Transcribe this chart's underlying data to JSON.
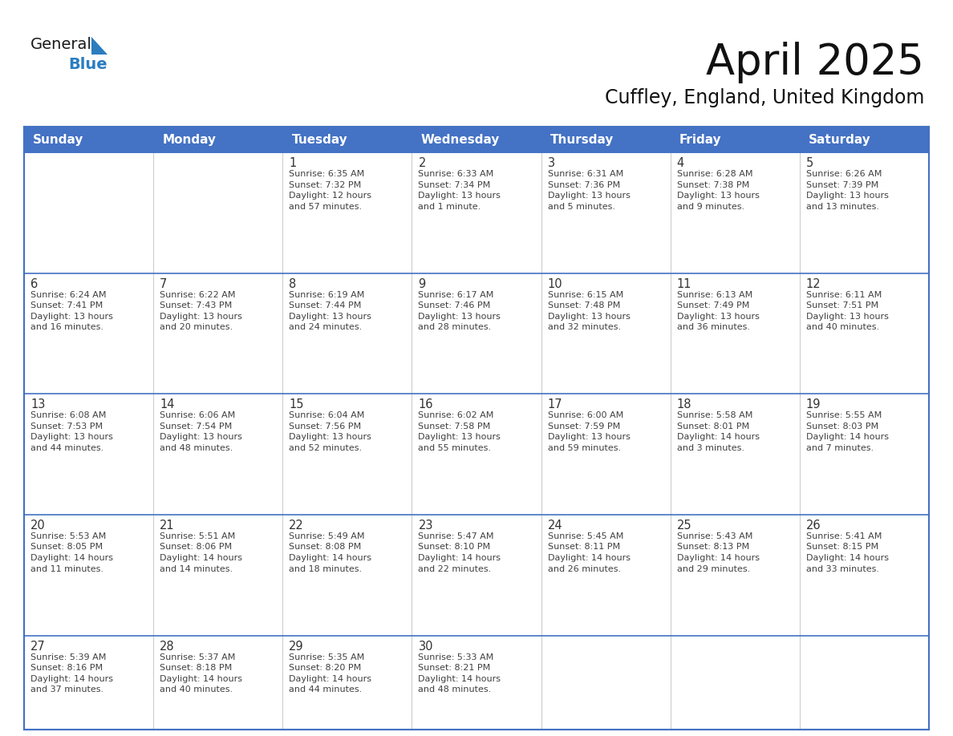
{
  "title": "April 2025",
  "subtitle": "Cuffley, England, United Kingdom",
  "header_bg_color": "#4472C4",
  "header_text_color": "#FFFFFF",
  "cell_bg_color": "#FFFFFF",
  "row_divider_color": "#4472C4",
  "col_divider_color": "#CCCCCC",
  "border_color": "#4472C4",
  "text_color": "#404040",
  "day_num_color": "#333333",
  "day_headers": [
    "Sunday",
    "Monday",
    "Tuesday",
    "Wednesday",
    "Thursday",
    "Friday",
    "Saturday"
  ],
  "weeks": [
    [
      {
        "day": "",
        "info": ""
      },
      {
        "day": "",
        "info": ""
      },
      {
        "day": "1",
        "info": "Sunrise: 6:35 AM\nSunset: 7:32 PM\nDaylight: 12 hours\nand 57 minutes."
      },
      {
        "day": "2",
        "info": "Sunrise: 6:33 AM\nSunset: 7:34 PM\nDaylight: 13 hours\nand 1 minute."
      },
      {
        "day": "3",
        "info": "Sunrise: 6:31 AM\nSunset: 7:36 PM\nDaylight: 13 hours\nand 5 minutes."
      },
      {
        "day": "4",
        "info": "Sunrise: 6:28 AM\nSunset: 7:38 PM\nDaylight: 13 hours\nand 9 minutes."
      },
      {
        "day": "5",
        "info": "Sunrise: 6:26 AM\nSunset: 7:39 PM\nDaylight: 13 hours\nand 13 minutes."
      }
    ],
    [
      {
        "day": "6",
        "info": "Sunrise: 6:24 AM\nSunset: 7:41 PM\nDaylight: 13 hours\nand 16 minutes."
      },
      {
        "day": "7",
        "info": "Sunrise: 6:22 AM\nSunset: 7:43 PM\nDaylight: 13 hours\nand 20 minutes."
      },
      {
        "day": "8",
        "info": "Sunrise: 6:19 AM\nSunset: 7:44 PM\nDaylight: 13 hours\nand 24 minutes."
      },
      {
        "day": "9",
        "info": "Sunrise: 6:17 AM\nSunset: 7:46 PM\nDaylight: 13 hours\nand 28 minutes."
      },
      {
        "day": "10",
        "info": "Sunrise: 6:15 AM\nSunset: 7:48 PM\nDaylight: 13 hours\nand 32 minutes."
      },
      {
        "day": "11",
        "info": "Sunrise: 6:13 AM\nSunset: 7:49 PM\nDaylight: 13 hours\nand 36 minutes."
      },
      {
        "day": "12",
        "info": "Sunrise: 6:11 AM\nSunset: 7:51 PM\nDaylight: 13 hours\nand 40 minutes."
      }
    ],
    [
      {
        "day": "13",
        "info": "Sunrise: 6:08 AM\nSunset: 7:53 PM\nDaylight: 13 hours\nand 44 minutes."
      },
      {
        "day": "14",
        "info": "Sunrise: 6:06 AM\nSunset: 7:54 PM\nDaylight: 13 hours\nand 48 minutes."
      },
      {
        "day": "15",
        "info": "Sunrise: 6:04 AM\nSunset: 7:56 PM\nDaylight: 13 hours\nand 52 minutes."
      },
      {
        "day": "16",
        "info": "Sunrise: 6:02 AM\nSunset: 7:58 PM\nDaylight: 13 hours\nand 55 minutes."
      },
      {
        "day": "17",
        "info": "Sunrise: 6:00 AM\nSunset: 7:59 PM\nDaylight: 13 hours\nand 59 minutes."
      },
      {
        "day": "18",
        "info": "Sunrise: 5:58 AM\nSunset: 8:01 PM\nDaylight: 14 hours\nand 3 minutes."
      },
      {
        "day": "19",
        "info": "Sunrise: 5:55 AM\nSunset: 8:03 PM\nDaylight: 14 hours\nand 7 minutes."
      }
    ],
    [
      {
        "day": "20",
        "info": "Sunrise: 5:53 AM\nSunset: 8:05 PM\nDaylight: 14 hours\nand 11 minutes."
      },
      {
        "day": "21",
        "info": "Sunrise: 5:51 AM\nSunset: 8:06 PM\nDaylight: 14 hours\nand 14 minutes."
      },
      {
        "day": "22",
        "info": "Sunrise: 5:49 AM\nSunset: 8:08 PM\nDaylight: 14 hours\nand 18 minutes."
      },
      {
        "day": "23",
        "info": "Sunrise: 5:47 AM\nSunset: 8:10 PM\nDaylight: 14 hours\nand 22 minutes."
      },
      {
        "day": "24",
        "info": "Sunrise: 5:45 AM\nSunset: 8:11 PM\nDaylight: 14 hours\nand 26 minutes."
      },
      {
        "day": "25",
        "info": "Sunrise: 5:43 AM\nSunset: 8:13 PM\nDaylight: 14 hours\nand 29 minutes."
      },
      {
        "day": "26",
        "info": "Sunrise: 5:41 AM\nSunset: 8:15 PM\nDaylight: 14 hours\nand 33 minutes."
      }
    ],
    [
      {
        "day": "27",
        "info": "Sunrise: 5:39 AM\nSunset: 8:16 PM\nDaylight: 14 hours\nand 37 minutes."
      },
      {
        "day": "28",
        "info": "Sunrise: 5:37 AM\nSunset: 8:18 PM\nDaylight: 14 hours\nand 40 minutes."
      },
      {
        "day": "29",
        "info": "Sunrise: 5:35 AM\nSunset: 8:20 PM\nDaylight: 14 hours\nand 44 minutes."
      },
      {
        "day": "30",
        "info": "Sunrise: 5:33 AM\nSunset: 8:21 PM\nDaylight: 14 hours\nand 48 minutes."
      },
      {
        "day": "",
        "info": ""
      },
      {
        "day": "",
        "info": ""
      },
      {
        "day": "",
        "info": ""
      }
    ]
  ],
  "logo_general_color": "#1a1a1a",
  "logo_blue_color": "#2B7DC0",
  "logo_triangle_color": "#2B7DC0",
  "title_fontsize": 38,
  "subtitle_fontsize": 17,
  "header_fontsize": 11,
  "day_num_fontsize": 10.5,
  "info_fontsize": 8.0
}
